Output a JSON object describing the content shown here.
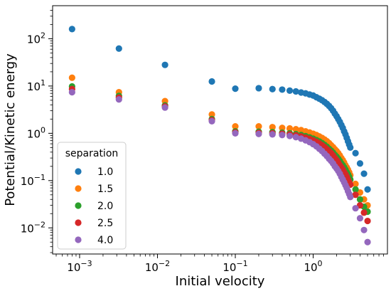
{
  "chart_data": {
    "type": "scatter",
    "xlabel": "Initial velocity",
    "ylabel": "Potential/Kinetic energy",
    "xscale": "log",
    "yscale": "log",
    "xlim": [
      0.00045,
      9.0
    ],
    "ylim": [
      0.0028,
      500
    ],
    "x_ticks": [
      {
        "value": 0.001,
        "base": "10",
        "exp": "−3"
      },
      {
        "value": 0.01,
        "base": "10",
        "exp": "−2"
      },
      {
        "value": 0.1,
        "base": "10",
        "exp": "−1"
      },
      {
        "value": 1,
        "base": "10",
        "exp": "0"
      }
    ],
    "y_ticks": [
      {
        "value": 0.01,
        "base": "10",
        "exp": "−2"
      },
      {
        "value": 0.1,
        "base": "10",
        "exp": "−1"
      },
      {
        "value": 1,
        "base": "10",
        "exp": "0"
      },
      {
        "value": 10,
        "base": "10",
        "exp": "1"
      },
      {
        "value": 100,
        "base": "10",
        "exp": "2"
      }
    ],
    "grid": false,
    "legend": {
      "title": "separation",
      "placement": "lower-left"
    },
    "series": [
      {
        "name": "1.0",
        "color": "#1f77b4",
        "x": [
          0.0008,
          0.0032,
          0.0125,
          0.05,
          0.1,
          0.2,
          0.3,
          0.4,
          0.5,
          0.6,
          0.7,
          0.8,
          0.9,
          1.0,
          1.1,
          1.2,
          1.3,
          1.4,
          1.5,
          1.6,
          1.7,
          1.8,
          1.9,
          2.0,
          2.1,
          2.2,
          2.3,
          2.4,
          2.5,
          2.6,
          2.7,
          2.8,
          2.9,
          3.0,
          3.5,
          4.0,
          4.5,
          5.0
        ],
        "y": [
          160,
          62,
          28,
          12.5,
          8.8,
          9.0,
          8.6,
          8.4,
          8.0,
          7.7,
          7.3,
          7.0,
          6.6,
          6.3,
          5.8,
          5.4,
          5.0,
          4.6,
          4.2,
          3.8,
          3.4,
          3.0,
          2.6,
          2.3,
          2.0,
          1.75,
          1.5,
          1.3,
          1.1,
          0.95,
          0.8,
          0.68,
          0.58,
          0.5,
          0.38,
          0.23,
          0.14,
          0.065
        ]
      },
      {
        "name": "1.5",
        "color": "#ff7f0e",
        "x": [
          0.0008,
          0.0032,
          0.0125,
          0.05,
          0.1,
          0.2,
          0.3,
          0.4,
          0.5,
          0.6,
          0.7,
          0.8,
          0.9,
          1.0,
          1.1,
          1.2,
          1.3,
          1.4,
          1.5,
          1.6,
          1.7,
          1.8,
          1.9,
          2.0,
          2.1,
          2.2,
          2.3,
          2.4,
          2.5,
          2.6,
          2.7,
          2.8,
          2.9,
          3.0,
          3.5,
          4.0,
          4.5,
          5.0
        ],
        "y": [
          15,
          7.4,
          4.8,
          2.5,
          1.4,
          1.4,
          1.35,
          1.3,
          1.27,
          1.22,
          1.17,
          1.1,
          1.04,
          0.98,
          0.92,
          0.86,
          0.8,
          0.74,
          0.68,
          0.62,
          0.56,
          0.51,
          0.46,
          0.42,
          0.38,
          0.34,
          0.3,
          0.27,
          0.24,
          0.21,
          0.19,
          0.17,
          0.15,
          0.13,
          0.085,
          0.056,
          0.04,
          0.03
        ]
      },
      {
        "name": "2.0",
        "color": "#2ca02c",
        "x": [
          0.0008,
          0.0032,
          0.0125,
          0.05,
          0.1,
          0.2,
          0.3,
          0.4,
          0.5,
          0.6,
          0.7,
          0.8,
          0.9,
          1.0,
          1.1,
          1.2,
          1.3,
          1.4,
          1.5,
          1.6,
          1.7,
          1.8,
          1.9,
          2.0,
          2.1,
          2.2,
          2.3,
          2.4,
          2.5,
          2.6,
          2.7,
          2.8,
          2.9,
          3.0,
          3.5,
          4.0,
          4.5,
          5.0
        ],
        "y": [
          9.8,
          6.2,
          3.9,
          2.0,
          1.1,
          1.08,
          1.06,
          1.03,
          1.0,
          0.96,
          0.92,
          0.87,
          0.82,
          0.77,
          0.72,
          0.67,
          0.62,
          0.57,
          0.52,
          0.47,
          0.43,
          0.39,
          0.35,
          0.32,
          0.29,
          0.26,
          0.23,
          0.21,
          0.19,
          0.17,
          0.15,
          0.135,
          0.12,
          0.105,
          0.065,
          0.04,
          0.028,
          0.022
        ]
      },
      {
        "name": "2.5",
        "color": "#d62728",
        "x": [
          0.0008,
          0.0032,
          0.0125,
          0.05,
          0.1,
          0.2,
          0.3,
          0.4,
          0.5,
          0.6,
          0.7,
          0.8,
          0.9,
          1.0,
          1.1,
          1.2,
          1.3,
          1.4,
          1.5,
          1.6,
          1.7,
          1.8,
          1.9,
          2.0,
          2.1,
          2.2,
          2.3,
          2.4,
          2.5,
          2.6,
          2.7,
          2.8,
          2.9,
          3.0,
          3.5,
          4.0,
          4.5,
          5.0
        ],
        "y": [
          8.6,
          5.7,
          3.7,
          1.9,
          1.05,
          1.02,
          1.0,
          0.98,
          0.95,
          0.91,
          0.86,
          0.81,
          0.76,
          0.71,
          0.66,
          0.61,
          0.56,
          0.51,
          0.46,
          0.42,
          0.38,
          0.34,
          0.3,
          0.27,
          0.24,
          0.21,
          0.19,
          0.17,
          0.15,
          0.135,
          0.12,
          0.105,
          0.093,
          0.082,
          0.05,
          0.03,
          0.021,
          0.014
        ]
      },
      {
        "name": "4.0",
        "color": "#9467bd",
        "x": [
          0.0008,
          0.0032,
          0.0125,
          0.05,
          0.1,
          0.2,
          0.3,
          0.4,
          0.5,
          0.6,
          0.7,
          0.8,
          0.9,
          1.0,
          1.1,
          1.2,
          1.3,
          1.4,
          1.5,
          1.6,
          1.7,
          1.8,
          1.9,
          2.0,
          2.1,
          2.2,
          2.3,
          2.4,
          2.5,
          2.6,
          2.7,
          2.8,
          2.9,
          3.0,
          3.5,
          4.0,
          4.5,
          5.0
        ],
        "y": [
          7.4,
          5.2,
          3.5,
          1.8,
          1.0,
          0.97,
          0.95,
          0.92,
          0.88,
          0.83,
          0.77,
          0.71,
          0.65,
          0.59,
          0.53,
          0.47,
          0.42,
          0.37,
          0.33,
          0.29,
          0.26,
          0.23,
          0.2,
          0.18,
          0.16,
          0.14,
          0.12,
          0.105,
          0.092,
          0.08,
          0.07,
          0.06,
          0.052,
          0.045,
          0.026,
          0.016,
          0.009,
          0.005
        ]
      }
    ]
  }
}
